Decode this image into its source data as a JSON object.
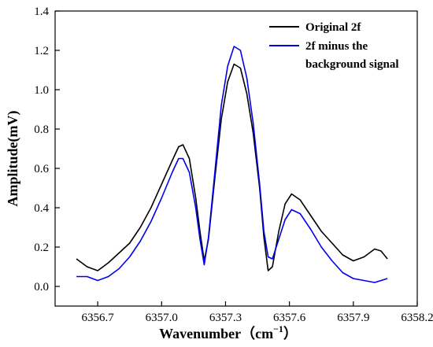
{
  "chart_data": {
    "type": "line",
    "title": "",
    "xlabel": "Wavenumber（cm",
    "xlabel_sup": "−1",
    "xlabel_close": "）",
    "ylabel": "Amplitude(mV)",
    "xlim": [
      6356.5,
      6358.2
    ],
    "ylim": [
      -0.1,
      1.4
    ],
    "x_ticks": [
      6356.7,
      6357.0,
      6357.3,
      6357.6,
      6357.9,
      6358.2
    ],
    "x_tick_labels": [
      "6356.7",
      "6357.0",
      "6357.3",
      "6357.6",
      "6357.9",
      "6358.2"
    ],
    "y_ticks": [
      0.0,
      0.2,
      0.4,
      0.6,
      0.8,
      1.0,
      1.2,
      1.4
    ],
    "y_tick_labels": [
      "0.0",
      "0.2",
      "0.4",
      "0.6",
      "0.8",
      "1.0",
      "1.2",
      "1.4"
    ],
    "grid": false,
    "legend_position": "top-right",
    "series": [
      {
        "name": "Original 2f",
        "color": "#000000",
        "points": [
          [
            6356.6,
            0.14
          ],
          [
            6356.65,
            0.1
          ],
          [
            6356.7,
            0.08
          ],
          [
            6356.75,
            0.12
          ],
          [
            6356.8,
            0.17
          ],
          [
            6356.85,
            0.22
          ],
          [
            6356.9,
            0.3
          ],
          [
            6356.95,
            0.4
          ],
          [
            6357.0,
            0.52
          ],
          [
            6357.05,
            0.64
          ],
          [
            6357.08,
            0.71
          ],
          [
            6357.1,
            0.72
          ],
          [
            6357.13,
            0.65
          ],
          [
            6357.16,
            0.45
          ],
          [
            6357.18,
            0.28
          ],
          [
            6357.2,
            0.13
          ],
          [
            6357.22,
            0.24
          ],
          [
            6357.25,
            0.55
          ],
          [
            6357.28,
            0.85
          ],
          [
            6357.31,
            1.04
          ],
          [
            6357.34,
            1.13
          ],
          [
            6357.37,
            1.11
          ],
          [
            6357.4,
            0.98
          ],
          [
            6357.43,
            0.78
          ],
          [
            6357.46,
            0.5
          ],
          [
            6357.48,
            0.25
          ],
          [
            6357.5,
            0.08
          ],
          [
            6357.52,
            0.1
          ],
          [
            6357.55,
            0.28
          ],
          [
            6357.58,
            0.42
          ],
          [
            6357.61,
            0.47
          ],
          [
            6357.65,
            0.44
          ],
          [
            6357.7,
            0.36
          ],
          [
            6357.75,
            0.28
          ],
          [
            6357.8,
            0.22
          ],
          [
            6357.85,
            0.16
          ],
          [
            6357.9,
            0.13
          ],
          [
            6357.95,
            0.15
          ],
          [
            6358.0,
            0.19
          ],
          [
            6358.03,
            0.18
          ],
          [
            6358.06,
            0.14
          ]
        ]
      },
      {
        "name": "2f minus the background signal",
        "color": "#0000ee",
        "points": [
          [
            6356.6,
            0.05
          ],
          [
            6356.65,
            0.05
          ],
          [
            6356.7,
            0.03
          ],
          [
            6356.75,
            0.05
          ],
          [
            6356.8,
            0.09
          ],
          [
            6356.85,
            0.15
          ],
          [
            6356.9,
            0.23
          ],
          [
            6356.95,
            0.33
          ],
          [
            6357.0,
            0.45
          ],
          [
            6357.05,
            0.58
          ],
          [
            6357.08,
            0.65
          ],
          [
            6357.1,
            0.65
          ],
          [
            6357.13,
            0.58
          ],
          [
            6357.16,
            0.4
          ],
          [
            6357.18,
            0.24
          ],
          [
            6357.2,
            0.11
          ],
          [
            6357.22,
            0.25
          ],
          [
            6357.25,
            0.58
          ],
          [
            6357.28,
            0.92
          ],
          [
            6357.31,
            1.12
          ],
          [
            6357.34,
            1.22
          ],
          [
            6357.37,
            1.2
          ],
          [
            6357.4,
            1.06
          ],
          [
            6357.43,
            0.83
          ],
          [
            6357.46,
            0.52
          ],
          [
            6357.48,
            0.28
          ],
          [
            6357.5,
            0.15
          ],
          [
            6357.52,
            0.14
          ],
          [
            6357.55,
            0.24
          ],
          [
            6357.58,
            0.34
          ],
          [
            6357.61,
            0.39
          ],
          [
            6357.65,
            0.37
          ],
          [
            6357.7,
            0.29
          ],
          [
            6357.75,
            0.2
          ],
          [
            6357.8,
            0.13
          ],
          [
            6357.85,
            0.07
          ],
          [
            6357.9,
            0.04
          ],
          [
            6357.95,
            0.03
          ],
          [
            6358.0,
            0.02
          ],
          [
            6358.03,
            0.03
          ],
          [
            6358.06,
            0.04
          ]
        ]
      }
    ]
  }
}
